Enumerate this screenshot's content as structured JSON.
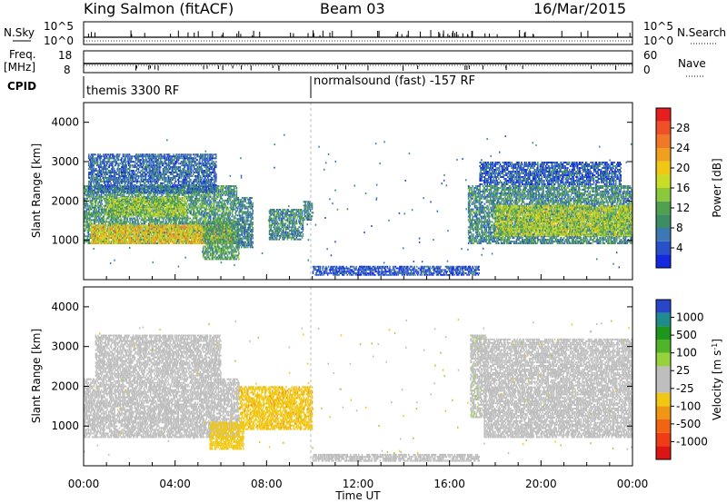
{
  "header": {
    "station": "King Salmon (fitACF)",
    "beam": "Beam 03",
    "date": "16/Mar/2015"
  },
  "strip_labels": {
    "nsky": "N.Sky",
    "freq": "Freq.",
    "freq_unit": "[MHz]",
    "cpid": "CPID",
    "nsearch": "N.Search",
    "nave": "Nave",
    "nsky_top": "10^5",
    "nsky_bot": "10^0",
    "freq_top": "18",
    "freq_bot": "8",
    "nsearch_top": "10^5",
    "nsearch_bot": "10^0",
    "nave_top": "60",
    "nave_bot": "0"
  },
  "cpid_segments": [
    {
      "label": "themis 3300 RF",
      "start_hour": 0
    },
    {
      "label": "normalsound (fast) -157 RF",
      "start_hour": 10
    }
  ],
  "chart_data": [
    {
      "type": "heatmap",
      "name": "power",
      "ylabel": "Slant Range [km]",
      "ylim": [
        0,
        4500
      ],
      "yticks": [
        1000,
        2000,
        3000,
        4000
      ],
      "xlim": [
        0,
        24
      ],
      "colorbar": {
        "label": "Power [dB]",
        "range": [
          0,
          32
        ],
        "ticks": [
          "4",
          "8",
          "12",
          "16",
          "20",
          "24",
          "28"
        ],
        "colors": [
          "#1428e0",
          "#2850c8",
          "#3c78b4",
          "#3c8c64",
          "#50a050",
          "#8cc83c",
          "#c8dc28",
          "#f0c814",
          "#f0a01e",
          "#f07828",
          "#f05028",
          "#e61e1e"
        ]
      },
      "regions": [
        {
          "t0": 0.0,
          "t1": 6.7,
          "r0": 900,
          "r1": 2400,
          "level": 10
        },
        {
          "t0": 0.3,
          "t1": 6.5,
          "r0": 900,
          "r1": 1400,
          "level": 20
        },
        {
          "t0": 1.0,
          "t1": 4.5,
          "r0": 1600,
          "r1": 2100,
          "level": 15
        },
        {
          "t0": 0.2,
          "t1": 5.8,
          "r0": 2200,
          "r1": 3200,
          "level": 6
        },
        {
          "t0": 5.2,
          "t1": 6.8,
          "r0": 500,
          "r1": 1500,
          "level": 11
        },
        {
          "t0": 6.7,
          "t1": 7.4,
          "r0": 800,
          "r1": 2100,
          "level": 8
        },
        {
          "t0": 8.1,
          "t1": 9.6,
          "r0": 1000,
          "r1": 1800,
          "level": 9
        },
        {
          "t0": 9.6,
          "t1": 10.0,
          "r0": 1500,
          "r1": 2000,
          "level": 8
        },
        {
          "t0": 10.0,
          "t1": 17.3,
          "r0": 100,
          "r1": 350,
          "level": 4
        },
        {
          "t0": 16.8,
          "t1": 24.0,
          "r0": 900,
          "r1": 2400,
          "level": 9
        },
        {
          "t0": 18.0,
          "t1": 24.0,
          "r0": 1100,
          "r1": 1900,
          "level": 16
        },
        {
          "t0": 17.3,
          "t1": 23.5,
          "r0": 2400,
          "r1": 3000,
          "level": 5
        }
      ]
    },
    {
      "type": "heatmap",
      "name": "velocity",
      "ylabel": "Slant Range [km]",
      "ylim": [
        0,
        4500
      ],
      "yticks": [
        1000,
        2000,
        3000,
        4000
      ],
      "xlim": [
        0,
        24
      ],
      "colorbar": {
        "label": "Velocity [m s^-1]",
        "range": [
          -1200,
          1200
        ],
        "ticks": [
          "1000",
          "500",
          "100",
          "25",
          "-25",
          "-100",
          "-500",
          "-1000"
        ],
        "colors": [
          "#2846c8",
          "#1e8c8c",
          "#1e961e",
          "#50b428",
          "#96d23c",
          "#bebebe",
          "#bebebe",
          "#f0c814",
          "#f09614",
          "#f06414",
          "#f03c14",
          "#dc1414"
        ]
      },
      "regions": [
        {
          "t0": 0.0,
          "t1": 6.8,
          "r0": 700,
          "r1": 2200,
          "level": 0
        },
        {
          "t0": 0.5,
          "t1": 6.0,
          "r0": 2200,
          "r1": 3300,
          "level": -100
        },
        {
          "t0": 5.5,
          "t1": 7.0,
          "r0": 400,
          "r1": 1100,
          "level": -300
        },
        {
          "t0": 6.8,
          "t1": 10.0,
          "r0": 900,
          "r1": 2000,
          "level": -350
        },
        {
          "t0": 10.0,
          "t1": 17.3,
          "r0": 100,
          "r1": 300,
          "level": 80
        },
        {
          "t0": 16.9,
          "t1": 17.6,
          "r0": 1200,
          "r1": 3300,
          "level": 150
        },
        {
          "t0": 17.5,
          "t1": 24.0,
          "r0": 700,
          "r1": 2400,
          "level": 0
        },
        {
          "t0": 17.5,
          "t1": 24.0,
          "r0": 2400,
          "r1": 3200,
          "level": -60
        }
      ]
    }
  ],
  "xaxis": {
    "ticks": [
      "00:00",
      "04:00",
      "08:00",
      "12:00",
      "16:00",
      "20:00",
      "00:00"
    ],
    "label": "Time UT"
  }
}
